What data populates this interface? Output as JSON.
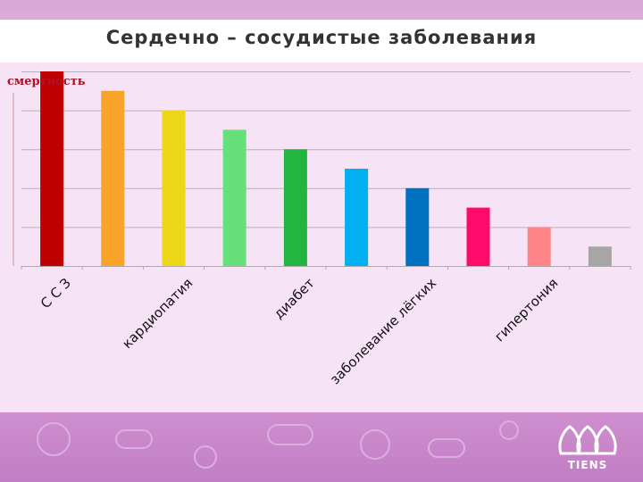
{
  "slide": {
    "title": "Сердечно – сосудистые заболевания",
    "logo_text": "TIENS"
  },
  "chart_data": {
    "type": "bar",
    "title": "Сердечно – сосудистые заболевания",
    "xlabel": "",
    "ylabel": "смертность",
    "ylim": [
      0,
      10
    ],
    "grid": true,
    "categories": [
      "",
      "",
      "",
      "",
      "",
      "",
      "",
      "",
      "",
      ""
    ],
    "category_labels_shown": [
      "С С З",
      "кардиопатия",
      "диабет",
      "заболевание лёгких",
      "гипертония"
    ],
    "values": [
      10,
      9,
      8,
      7,
      6,
      5,
      4,
      3,
      2,
      1
    ],
    "colors": [
      "#c00000",
      "#f8a32a",
      "#ecd616",
      "#66e07a",
      "#22b540",
      "#00b0f0",
      "#0070c0",
      "#ff0a6a",
      "#ff8589",
      "#a6a6a6"
    ]
  }
}
